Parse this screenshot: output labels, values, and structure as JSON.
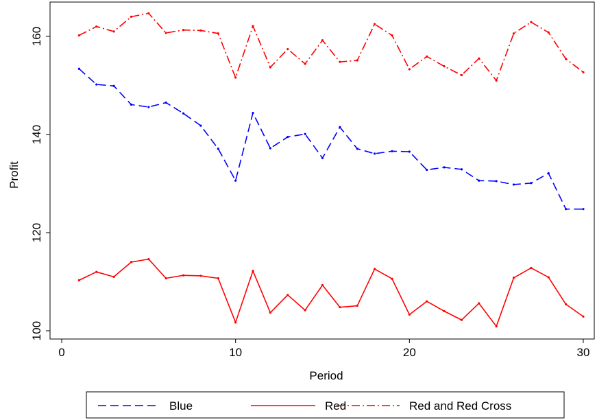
{
  "chart_data": {
    "type": "line",
    "title": "",
    "xlabel": "Period",
    "ylabel": "Profit",
    "xlim": [
      0,
      31
    ],
    "ylim": [
      98,
      166
    ],
    "xticks": [
      0,
      10,
      20,
      30
    ],
    "yticks": [
      100,
      120,
      140,
      160
    ],
    "grid": false,
    "legend_position": "bottom",
    "x": [
      1,
      2,
      3,
      4,
      5,
      6,
      7,
      8,
      9,
      10,
      11,
      12,
      13,
      14,
      15,
      16,
      17,
      18,
      19,
      20,
      21,
      22,
      23,
      24,
      25,
      26,
      27,
      28,
      29,
      30
    ],
    "series": [
      {
        "name": "Blue",
        "color": "#0000ff",
        "dash": "dashed",
        "values": [
          153.4,
          150.2,
          149.9,
          146.1,
          145.6,
          146.5,
          144.3,
          141.8,
          137.1,
          130.6,
          144.4,
          137.2,
          139.5,
          140.1,
          135.2,
          141.5,
          137.1,
          136.1,
          136.6,
          136.5,
          132.8,
          133.3,
          132.9,
          130.6,
          130.5,
          129.8,
          130.1,
          132.1,
          124.8,
          124.8
        ]
      },
      {
        "name": "Red",
        "color": "#ff0000",
        "dash": "solid",
        "values": [
          110.3,
          112.0,
          111.0,
          114.0,
          114.6,
          110.7,
          111.3,
          111.2,
          110.7,
          101.7,
          112.2,
          103.7,
          107.3,
          104.2,
          109.3,
          104.8,
          105.1,
          112.6,
          110.6,
          103.3,
          106.0,
          104.0,
          102.2,
          105.6,
          100.9,
          110.8,
          112.8,
          110.9,
          105.4,
          102.9
        ]
      },
      {
        "name": "Red and Red Cross",
        "color": "#ff0000",
        "dash": "dashdot",
        "values": [
          160.2,
          162.0,
          161.0,
          164.0,
          164.7,
          160.7,
          161.3,
          161.2,
          160.6,
          151.6,
          162.1,
          153.7,
          157.4,
          154.4,
          159.2,
          154.8,
          155.1,
          162.5,
          160.2,
          153.3,
          155.9,
          153.9,
          152.1,
          155.5,
          151.0,
          160.6,
          162.9,
          160.8,
          155.4,
          152.7
        ]
      }
    ]
  }
}
